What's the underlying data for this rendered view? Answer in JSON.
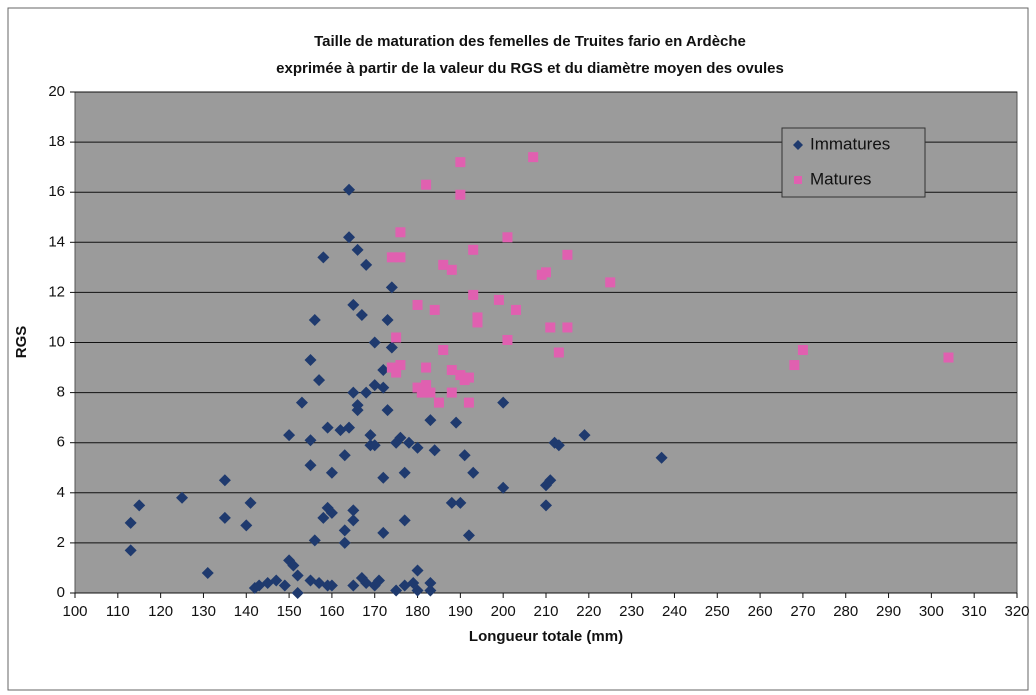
{
  "chart_data": {
    "type": "scatter",
    "title": "Taille de maturation des femelles de Truites fario en Ardèche",
    "subtitle": "exprimée à partir de la valeur du RGS et du diamètre moyen des ovules",
    "x_label": "Longueur totale (mm)",
    "y_label": "RGS",
    "xlim": [
      100,
      320
    ],
    "ylim": [
      0,
      20
    ],
    "xticks": [
      100,
      110,
      120,
      130,
      140,
      150,
      160,
      170,
      180,
      190,
      200,
      210,
      220,
      230,
      240,
      250,
      260,
      270,
      280,
      290,
      300,
      310,
      320
    ],
    "yticks": [
      0,
      2,
      4,
      6,
      8,
      10,
      12,
      14,
      16,
      18,
      20
    ],
    "grid": true,
    "legend": "upper right",
    "series": [
      {
        "name": "Immatures",
        "color": "#1f3a6e",
        "marker": "diamond",
        "x": [
          113,
          113,
          115,
          125,
          131,
          135,
          135,
          140,
          141,
          142,
          143,
          145,
          147,
          149,
          150,
          150,
          151,
          152,
          152,
          153,
          155,
          155,
          155,
          155,
          156,
          156,
          157,
          157,
          158,
          158,
          159,
          159,
          159,
          160,
          160,
          160,
          162,
          163,
          163,
          163,
          164,
          164,
          164,
          165,
          165,
          165,
          165,
          165,
          166,
          166,
          166,
          167,
          167,
          168,
          168,
          168,
          169,
          169,
          170,
          170,
          170,
          170,
          171,
          172,
          172,
          172,
          172,
          173,
          173,
          174,
          174,
          175,
          175,
          176,
          177,
          177,
          177,
          178,
          179,
          180,
          180,
          180,
          183,
          183,
          183,
          184,
          188,
          189,
          190,
          191,
          192,
          193,
          200,
          200,
          210,
          210,
          211,
          212,
          213,
          219,
          237
        ],
        "values": [
          2.8,
          1.7,
          3.5,
          3.8,
          0.8,
          4.5,
          3.0,
          2.7,
          3.6,
          0.2,
          0.3,
          0.4,
          0.5,
          0.3,
          6.3,
          1.3,
          1.1,
          0.7,
          0.0,
          7.6,
          9.3,
          6.1,
          5.1,
          0.5,
          10.9,
          2.1,
          8.5,
          0.4,
          13.4,
          3.0,
          6.6,
          3.4,
          0.3,
          3.2,
          4.8,
          0.3,
          6.5,
          5.5,
          2.5,
          2.0,
          16.1,
          14.2,
          6.6,
          11.5,
          8.0,
          3.3,
          2.9,
          0.3,
          13.7,
          7.5,
          7.3,
          11.1,
          0.6,
          13.1,
          0.4,
          8.0,
          6.3,
          5.9,
          10.0,
          8.3,
          5.9,
          0.3,
          0.5,
          8.9,
          8.2,
          4.6,
          2.4,
          10.9,
          7.3,
          12.2,
          9.8,
          6.0,
          0.1,
          6.2,
          4.8,
          2.9,
          0.3,
          6.0,
          0.4,
          5.8,
          0.9,
          0.1,
          6.9,
          0.4,
          0.1,
          5.7,
          3.6,
          6.8,
          3.6,
          5.5,
          2.3,
          4.8,
          7.6,
          4.2,
          3.5,
          4.3,
          4.5,
          6.0,
          5.9,
          6.3,
          5.4
        ]
      },
      {
        "name": "Matures",
        "color": "#e060b0",
        "marker": "square",
        "x": [
          174,
          176,
          176,
          175,
          174,
          175,
          176,
          180,
          180,
          181,
          182,
          182,
          182,
          183,
          184,
          185,
          186,
          186,
          188,
          188,
          188,
          190,
          190,
          190,
          191,
          192,
          192,
          193,
          193,
          194,
          194,
          199,
          201,
          201,
          203,
          207,
          209,
          210,
          211,
          213,
          215,
          215,
          225,
          268,
          270,
          304
        ],
        "values": [
          13.4,
          13.4,
          14.4,
          10.2,
          9.0,
          8.8,
          9.1,
          11.5,
          8.2,
          8.0,
          16.3,
          9.0,
          8.3,
          8.0,
          11.3,
          7.6,
          9.7,
          13.1,
          12.9,
          8.0,
          8.9,
          8.7,
          17.2,
          15.9,
          8.5,
          8.6,
          7.6,
          11.9,
          13.7,
          10.8,
          11.0,
          11.7,
          14.2,
          10.1,
          11.3,
          17.4,
          12.7,
          12.8,
          10.6,
          9.6,
          13.5,
          10.6,
          12.4,
          9.1,
          9.7,
          9.4
        ]
      }
    ]
  }
}
